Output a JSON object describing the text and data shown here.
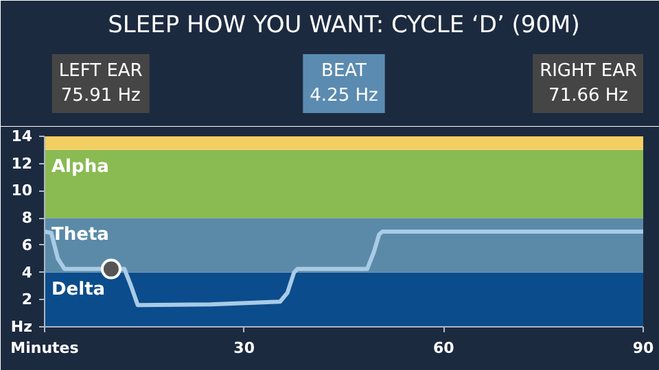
{
  "chart_data": {
    "type": "line",
    "title": "SLEEP HOW YOU WANT: CYCLE ‘D’ (90M)",
    "annotations": [
      "LEFT EAR\n75.91 Hz",
      "BEAT\n4.25 Hz",
      "RIGHT EAR\n71.66 Hz"
    ],
    "xlim": [
      0,
      90
    ],
    "xticks": [
      {
        "value": 0,
        "label": "Minutes"
      },
      30,
      60,
      90
    ],
    "ylim": [
      0,
      14
    ],
    "yticks": [
      {
        "value": 0,
        "label": "Hz"
      },
      2,
      4,
      6,
      8,
      10,
      12,
      14
    ],
    "grid": false,
    "bands": [
      {
        "axis": "y",
        "from": 0,
        "to": 4,
        "label": "Delta",
        "color": "#0b4c8c"
      },
      {
        "axis": "y",
        "from": 4,
        "to": 8,
        "label": "Theta",
        "color": "#5a8aa8"
      },
      {
        "axis": "y",
        "from": 8,
        "to": 13,
        "label": "Alpha",
        "color": "#8aba52"
      },
      {
        "axis": "y",
        "from": 13,
        "to": 14,
        "label": null,
        "color": "#f3cf62"
      }
    ],
    "series": [
      {
        "color": "#a9cbe6",
        "marker": "none",
        "x": [
          0,
          1,
          2,
          3,
          10,
          12,
          13,
          14,
          25,
          35.4,
          36.5,
          37.5,
          38,
          48.5,
          49.5,
          50.3,
          50.8,
          90
        ],
        "values": [
          7,
          6.9,
          5,
          4.25,
          4.25,
          4.25,
          3,
          1.6,
          1.65,
          1.85,
          2.5,
          4,
          4.25,
          4.25,
          5.5,
          6.8,
          7,
          7
        ]
      },
      {
        "type": "scatter",
        "color": "#555555",
        "marker": "circle",
        "x": [
          10
        ],
        "values": [
          4.25
        ]
      }
    ]
  }
}
